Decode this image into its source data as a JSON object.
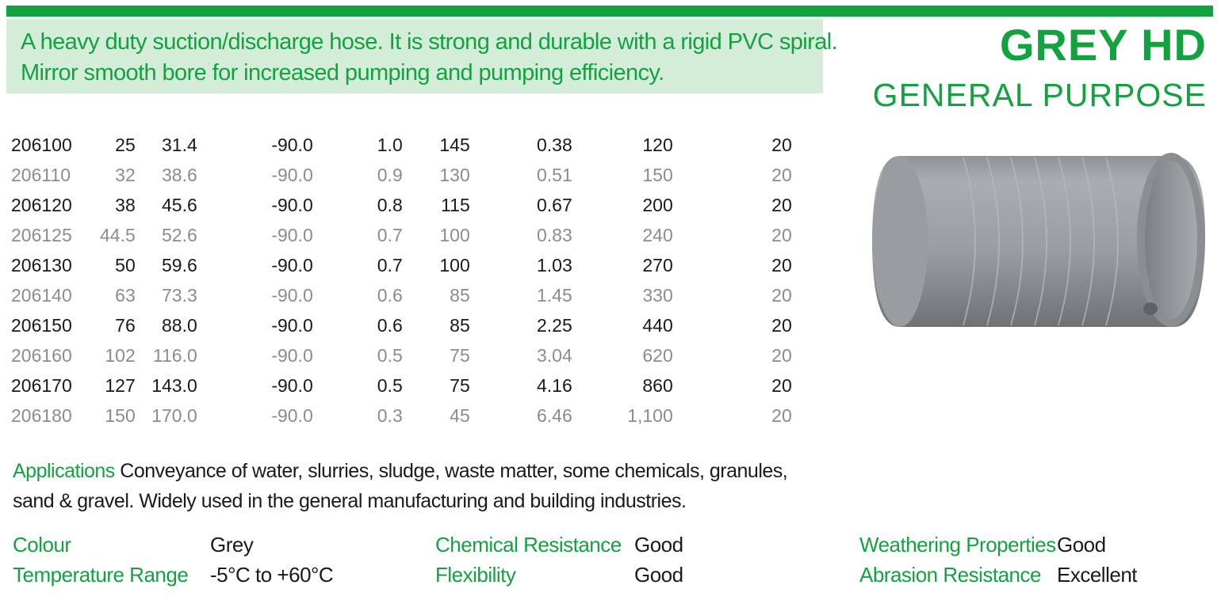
{
  "header": {
    "description_lines": [
      "A heavy duty suction/discharge hose. It is strong and durable with a rigid PVC spiral.",
      "Mirror smooth bore for increased pumping and pumping efficiency."
    ],
    "title": "GREY HD",
    "subtitle": "GENERAL PURPOSE"
  },
  "table": {
    "rows": [
      [
        "206100",
        "25",
        "31.4",
        "-90.0",
        "1.0",
        "145",
        "0.38",
        "120",
        "20"
      ],
      [
        "206110",
        "32",
        "38.6",
        "-90.0",
        "0.9",
        "130",
        "0.51",
        "150",
        "20"
      ],
      [
        "206120",
        "38",
        "45.6",
        "-90.0",
        "0.8",
        "115",
        "0.67",
        "200",
        "20"
      ],
      [
        "206125",
        "44.5",
        "52.6",
        "-90.0",
        "0.7",
        "100",
        "0.83",
        "240",
        "20"
      ],
      [
        "206130",
        "50",
        "59.6",
        "-90.0",
        "0.7",
        "100",
        "1.03",
        "270",
        "20"
      ],
      [
        "206140",
        "63",
        "73.3",
        "-90.0",
        "0.6",
        "85",
        "1.45",
        "330",
        "20"
      ],
      [
        "206150",
        "76",
        "88.0",
        "-90.0",
        "0.6",
        "85",
        "2.25",
        "440",
        "20"
      ],
      [
        "206160",
        "102",
        "116.0",
        "-90.0",
        "0.5",
        "75",
        "3.04",
        "620",
        "20"
      ],
      [
        "206170",
        "127",
        "143.0",
        "-90.0",
        "0.5",
        "75",
        "4.16",
        "860",
        "20"
      ],
      [
        "206180",
        "150",
        "170.0",
        "-90.0",
        "0.3",
        "45",
        "6.46",
        "1,100",
        "20"
      ]
    ]
  },
  "applications": {
    "label": "Applications",
    "text": "Conveyance of water, slurries, sludge, waste matter, some chemicals, granules, sand & gravel. Widely used in the general manufacturing and building industries."
  },
  "properties": {
    "colour": {
      "label": "Colour",
      "value": "Grey"
    },
    "temperature": {
      "label": "Temperature Range",
      "value": "-5°C to +60°C"
    },
    "chemical": {
      "label": "Chemical Resistance",
      "value": "Good"
    },
    "flexibility": {
      "label": "Flexibility",
      "value": "Good"
    },
    "weathering": {
      "label": "Weathering Properties",
      "value": "Good"
    },
    "abrasion": {
      "label": "Abrasion Resistance",
      "value": "Excellent"
    }
  },
  "colors": {
    "brand_green": "#12a23f",
    "panel_green": "#d4edd9",
    "row_dark": "#1a1a1a",
    "row_light": "#8c8c8c"
  },
  "image": {
    "subject": "grey-pvc-hose"
  }
}
